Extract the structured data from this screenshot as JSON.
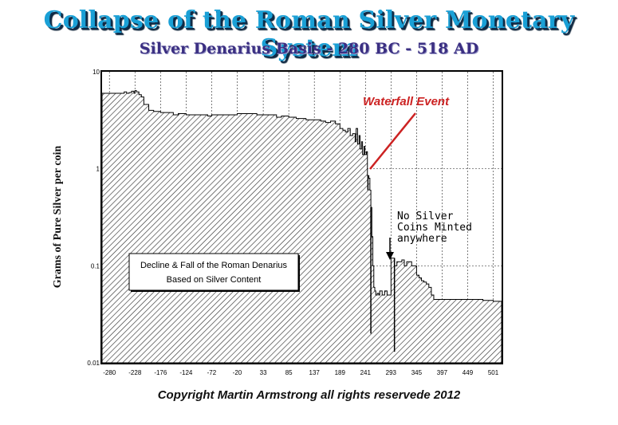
{
  "title": "Collapse of the Roman Silver Monetary System",
  "subtitle": "Silver Denarius Basis - 280 BC - 518 AD",
  "copyright": "Copyright Martin Armstrong all rights reservede 2012",
  "chart_data": {
    "type": "area",
    "ylabel": "Grams of Pure Silver per coin",
    "xlabel": "",
    "y_scale": "log",
    "ylim": [
      0.01,
      10
    ],
    "xlim": [
      -295,
      518
    ],
    "grid": "dashed",
    "y_ticks": [
      "10",
      "1",
      "0.1",
      "0.01"
    ],
    "x_ticks": [
      "-280",
      "-228",
      "-176",
      "-124",
      "-72",
      "-20",
      "33",
      "85",
      "137",
      "189",
      "241",
      "293",
      "345",
      "397",
      "449",
      "501"
    ],
    "colors": {
      "fill_hatch": "#000000",
      "annotation_red": "#cc2222",
      "frame": "#000000"
    },
    "series": [
      {
        "x": [
          -295,
          -250,
          -245,
          -240,
          -235,
          -230,
          -228,
          -225,
          -220,
          -215,
          -210,
          -200,
          -190,
          -176,
          -160,
          -150,
          -140,
          -124,
          -100,
          -80,
          -72,
          -50,
          -20,
          0,
          20,
          33,
          50,
          60,
          70,
          85,
          100,
          120,
          137,
          150,
          160,
          170,
          180,
          189,
          195,
          200,
          205,
          210,
          215,
          220,
          222,
          225,
          228,
          230,
          233,
          235,
          238,
          240,
          243,
          245,
          248,
          250,
          252,
          254,
          256,
          258,
          260,
          262,
          265,
          268,
          270,
          275,
          280,
          285,
          293,
          295,
          300,
          305,
          310,
          315,
          320,
          325,
          330,
          335,
          340,
          345,
          350,
          355,
          360,
          365,
          370,
          375,
          380,
          397,
          420,
          449,
          480,
          501,
          518
        ],
        "y": [
          6.0,
          6.2,
          6.0,
          6.1,
          6.3,
          6.0,
          6.4,
          6.2,
          5.8,
          5.5,
          4.6,
          4.0,
          3.9,
          3.8,
          3.8,
          3.6,
          3.7,
          3.6,
          3.6,
          3.5,
          3.6,
          3.6,
          3.7,
          3.7,
          3.6,
          3.6,
          3.6,
          3.4,
          3.5,
          3.4,
          3.3,
          3.2,
          3.2,
          3.1,
          3.0,
          3.1,
          2.9,
          2.6,
          2.5,
          2.4,
          2.6,
          2.2,
          2.3,
          1.9,
          2.6,
          1.8,
          2.2,
          1.6,
          1.9,
          1.4,
          1.7,
          1.4,
          1.5,
          0.85,
          0.8,
          0.6,
          0.4,
          0.2,
          0.1,
          0.06,
          0.055,
          0.05,
          0.052,
          0.05,
          0.055,
          0.05,
          0.055,
          0.05,
          0.12,
          0.12,
          0.1,
          0.11,
          0.11,
          0.115,
          0.1,
          0.11,
          0.11,
          0.1,
          0.1,
          0.08,
          0.075,
          0.07,
          0.068,
          0.065,
          0.06,
          0.05,
          0.045,
          0.045,
          0.045,
          0.045,
          0.044,
          0.043,
          0.043
        ]
      }
    ],
    "annotations": [
      {
        "text": "Waterfall Event",
        "color": "#cc2222"
      },
      {
        "text_lines": [
          "No Silver",
          "Coins Minted",
          "anywhere"
        ]
      },
      {
        "text_lines": [
          "Decline & Fall of the Roman Denarius",
          "Based on Silver Content"
        ]
      }
    ]
  }
}
